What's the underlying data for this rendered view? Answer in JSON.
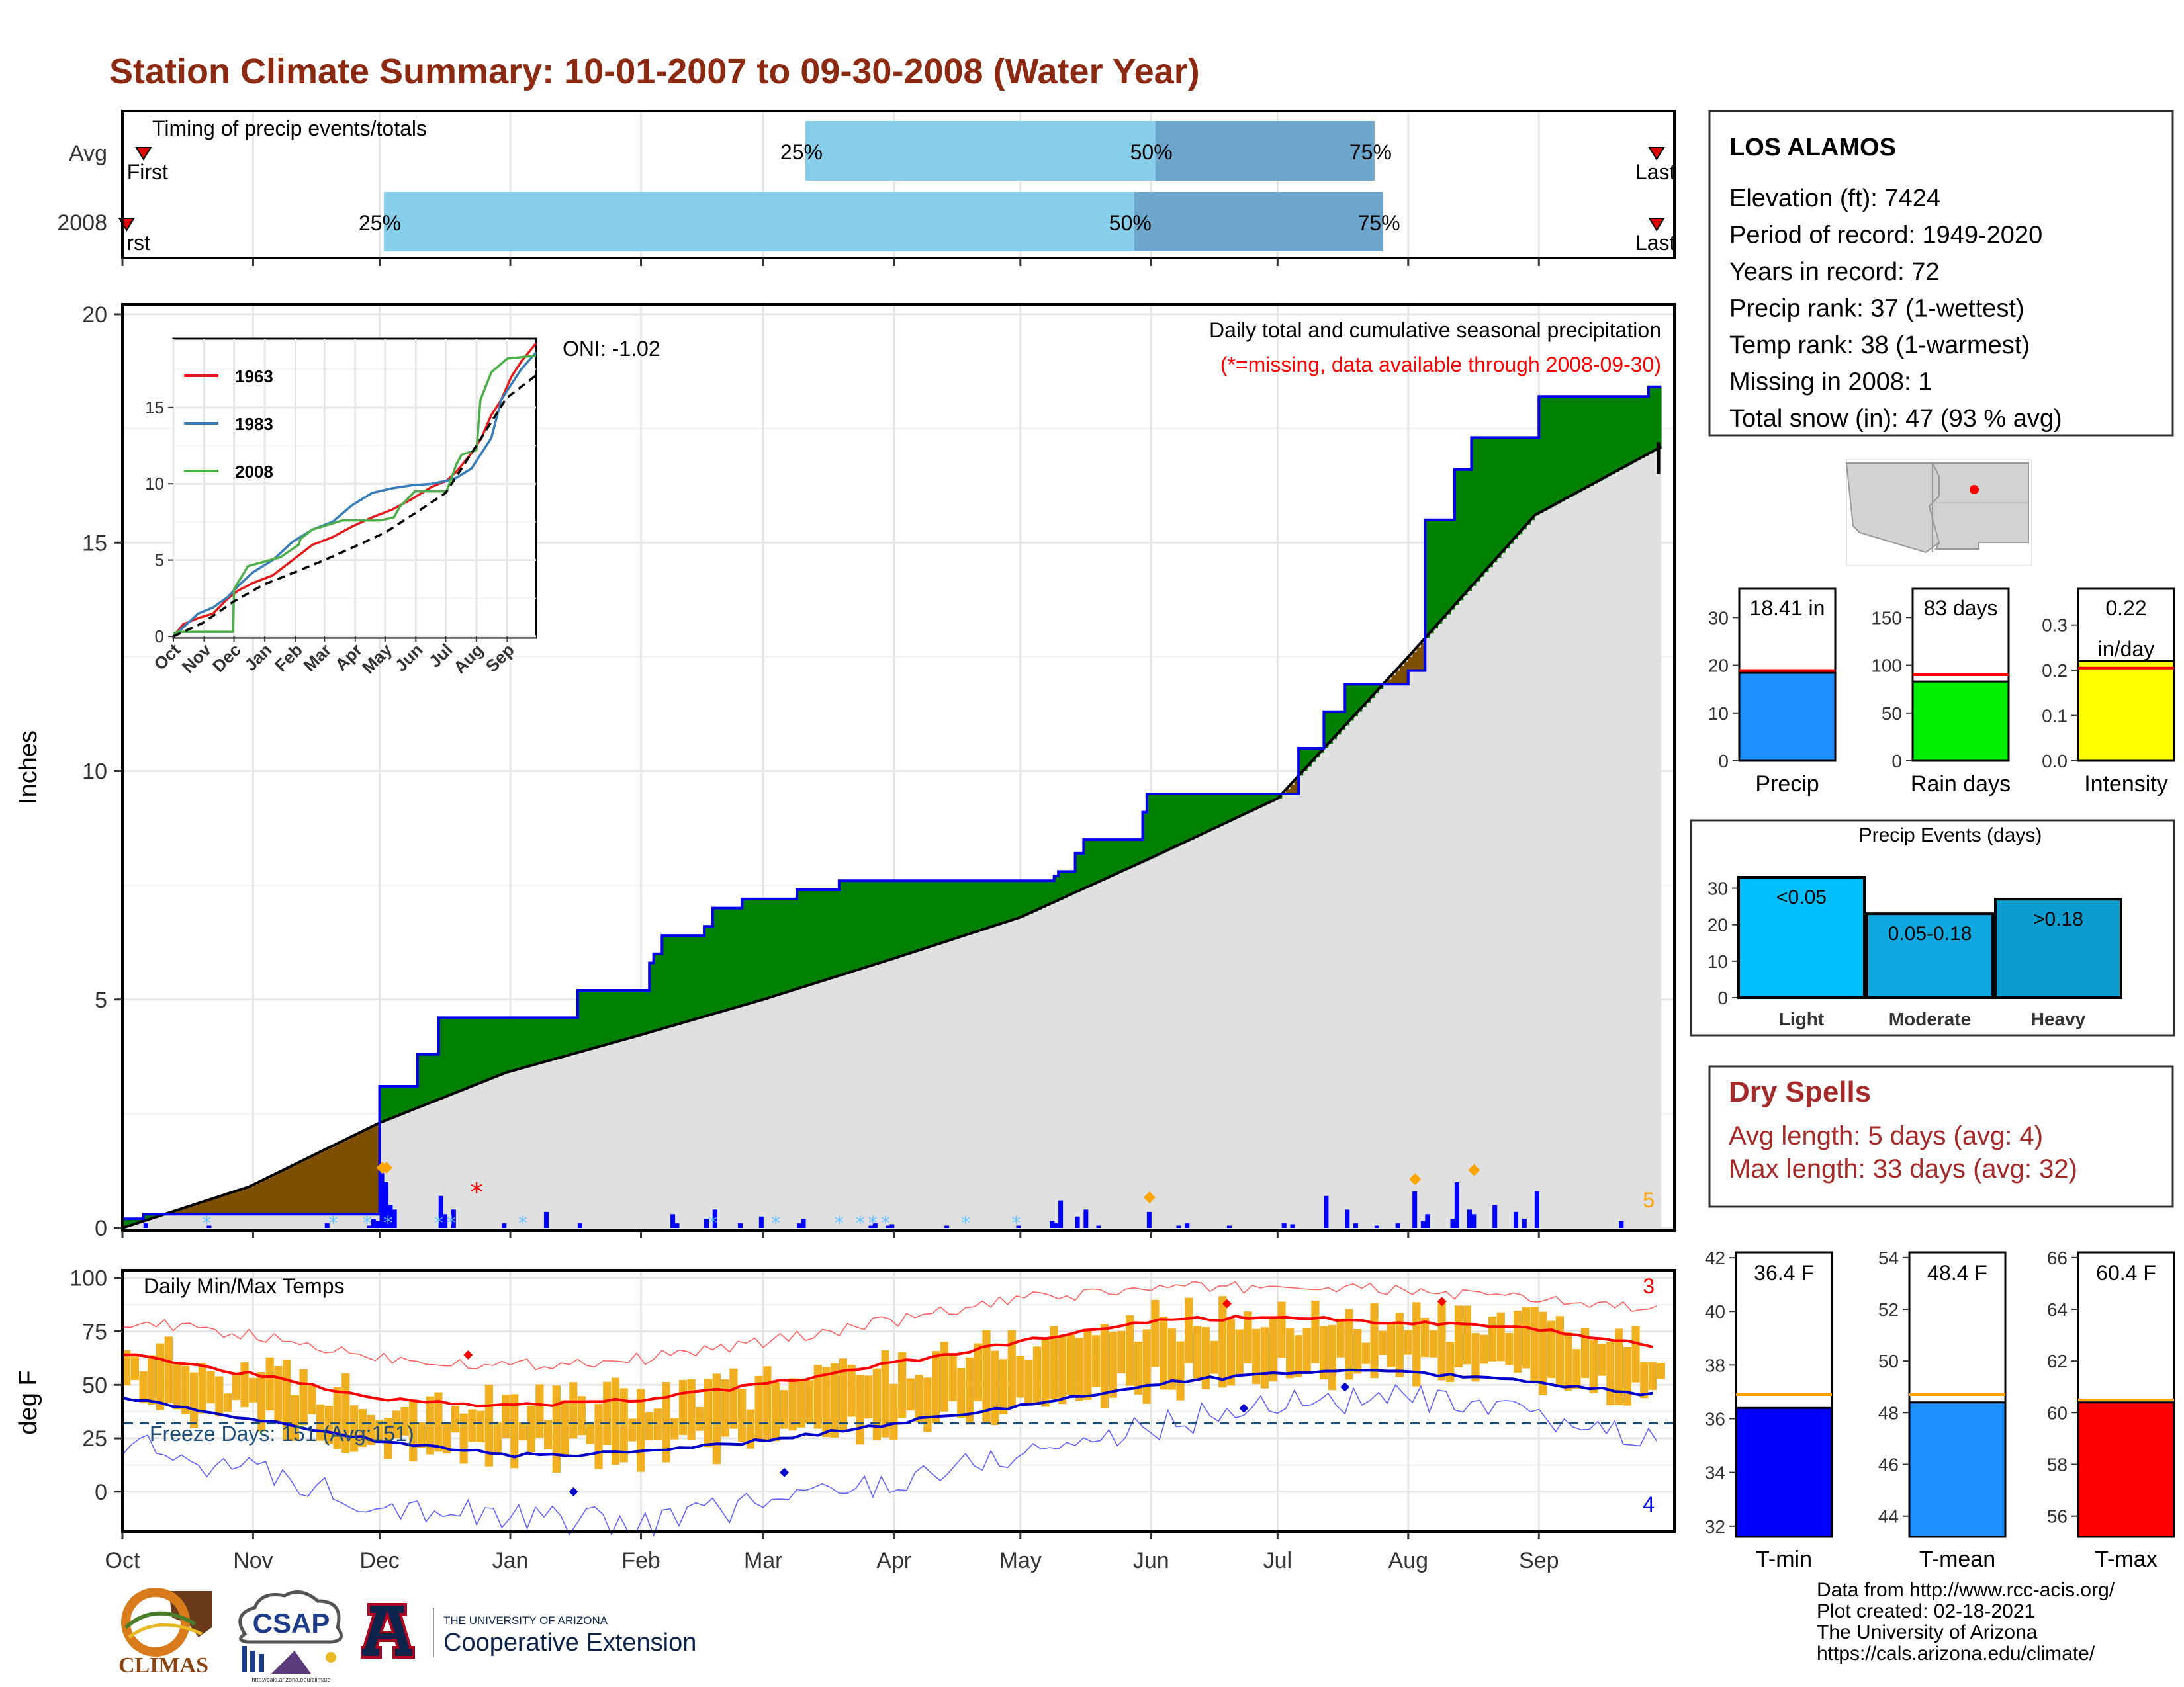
{
  "title": "Station Climate Summary: 10-01-2007 to 09-30-2008 (Water Year)",
  "timing": {
    "label": "Timing of precip events/totals",
    "rows": [
      {
        "name": "Avg",
        "first_label": "First",
        "last_label": "Last",
        "p25": "25%",
        "p50": "50%",
        "p75": "75%",
        "first_day": 5,
        "p25_day": 162,
        "p50_day": 245,
        "p75_day": 297,
        "last_day": 360
      },
      {
        "name": "2008",
        "first_label": "rst",
        "last_label": "Last",
        "p25": "25%",
        "p50": "50%",
        "p75": "75%",
        "first_day": 1,
        "p25_day": 62,
        "p50_day": 240,
        "p75_day": 299,
        "last_day": 360
      }
    ]
  },
  "station": {
    "name": "LOS ALAMOS",
    "lines": [
      "Elevation (ft): 7424",
      "Period of record: 1949-2020",
      "Years in record: 72",
      "Precip rank: 37 (1-wettest)",
      "Temp rank: 38 (1-warmest)",
      "Missing in 2008: 1",
      "Total snow (in): 47 (93 % avg)"
    ]
  },
  "precip_panel": {
    "ylabel": "Inches",
    "title_line1": "Daily total and cumulative seasonal precipitation",
    "title_line2": "(*=missing, data available through 2008-09-30)",
    "oni": "ONI: -1.02",
    "corner_count": "5",
    "yticks": [
      "0",
      "5",
      "10",
      "15",
      "20"
    ]
  },
  "inset": {
    "legend": [
      "1963",
      "1983",
      "2008"
    ],
    "legend_colors": [
      "#e41a1c",
      "#377eb8",
      "#4daf4a"
    ],
    "yticks": [
      "0",
      "5",
      "10",
      "15"
    ],
    "xticks": [
      "Oct",
      "Nov",
      "Dec",
      "Jan",
      "Feb",
      "Mar",
      "Apr",
      "May",
      "Jun",
      "Jul",
      "Aug",
      "Sep"
    ]
  },
  "temp_panel": {
    "ylabel": "deg F",
    "title": "Daily Min/Max Temps",
    "freeze": "Freeze Days: 151 (Avg:151)",
    "count_hi": "3",
    "count_lo": "4",
    "yticks": [
      "0",
      "25",
      "50",
      "75",
      "100"
    ]
  },
  "months": [
    "Oct",
    "Nov",
    "Dec",
    "Jan",
    "Feb",
    "Mar",
    "Apr",
    "May",
    "Jun",
    "Jul",
    "Aug",
    "Sep"
  ],
  "summary_bars": [
    {
      "label": "Precip",
      "value": 18.41,
      "avg": 18.9,
      "ymax": 36,
      "ticks": [
        "0",
        "10",
        "20",
        "30"
      ],
      "tickvals": [
        0,
        10,
        20,
        30
      ],
      "text": "18.41 in",
      "color": "#1e90ff"
    },
    {
      "label": "Rain days",
      "value": 83,
      "avg": 90,
      "ymax": 180,
      "ticks": [
        "0",
        "50",
        "100",
        "150"
      ],
      "tickvals": [
        0,
        50,
        100,
        150
      ],
      "text": "83 days",
      "color": "#00ee00"
    },
    {
      "label": "Intensity",
      "value": 0.22,
      "avg": 0.205,
      "ymax": 0.38,
      "ticks": [
        "0.0",
        "0.1",
        "0.2",
        "0.3"
      ],
      "tickvals": [
        0,
        0.1,
        0.2,
        0.3
      ],
      "text": "0.22",
      "text2": "in/day",
      "color": "#ffff00"
    }
  ],
  "events": {
    "title": "Precip Events (days)",
    "ticks": [
      "0",
      "10",
      "20",
      "30"
    ],
    "bars": [
      {
        "label": "Light",
        "text": "<0.05",
        "value": 33,
        "color": "#00bfff"
      },
      {
        "label": "Moderate",
        "text": "0.05-0.18",
        "value": 23,
        "color": "#0fa8e0"
      },
      {
        "label": "Heavy",
        "text": ">0.18",
        "value": 27,
        "color": "#0b9cd0"
      }
    ]
  },
  "dry_spells": {
    "title": "Dry Spells",
    "avg_length": "Avg length: 5 days (avg: 4)",
    "max_length": "Max length: 33 days (avg: 32)"
  },
  "temp_bars": [
    {
      "label": "T-min",
      "value": 36.4,
      "avg": 36.9,
      "ymin": 31.6,
      "ymax": 42.2,
      "ticks": [
        "32",
        "34",
        "36",
        "38",
        "40",
        "42"
      ],
      "tickvals": [
        32,
        34,
        36,
        38,
        40,
        42
      ],
      "text": "36.4 F",
      "color": "#0000ff"
    },
    {
      "label": "T-mean",
      "value": 48.4,
      "avg": 48.7,
      "ymin": 43.2,
      "ymax": 54.2,
      "ticks": [
        "44",
        "46",
        "48",
        "50",
        "52",
        "54"
      ],
      "tickvals": [
        44,
        46,
        48,
        50,
        52,
        54
      ],
      "text": "48.4 F",
      "color": "#1e90ff"
    },
    {
      "label": "T-max",
      "value": 60.4,
      "avg": 60.5,
      "ymin": 55.2,
      "ymax": 66.2,
      "ticks": [
        "56",
        "58",
        "60",
        "62",
        "64",
        "66"
      ],
      "tickvals": [
        56,
        58,
        60,
        62,
        64,
        66
      ],
      "text": "60.4 F",
      "color": "#ff0000"
    }
  ],
  "footer": [
    "Data from http://www.rcc-acis.org/",
    "Plot created: 02-18-2021",
    "The University of Arizona",
    "https://cals.arizona.edu/climate/"
  ],
  "logos": {
    "climas": "CLIMAS",
    "csap": "CSAP",
    "csap_url": "http://cals.arizona.edu/climate",
    "ua_top": "THE UNIVERSITY OF ARIZONA",
    "ua_bottom": "Cooperative Extension"
  },
  "colors": {
    "above_avg": "#008000",
    "below_avg": "#7f4f00",
    "climatology": "#e0e0e0",
    "precip_line": "#0000ee",
    "temp_bars": "#f0b020",
    "tmax_line": "#ff0000",
    "tmin_line": "#0000cc"
  },
  "chart_data": [
    {
      "type": "area",
      "name": "cumulative_precip",
      "x_unit": "day of water year",
      "ylim": [
        0,
        20
      ],
      "avg_cumulative": {
        "x": [
          0,
          30,
          61,
          91,
          122,
          152,
          183,
          213,
          244,
          274,
          305,
          335,
          365
        ],
        "y": [
          0,
          0.9,
          2.3,
          3.4,
          4.2,
          5.0,
          5.9,
          6.8,
          8.1,
          9.4,
          12.5,
          15.6,
          17.1
        ]
      },
      "obs_cumulative": {
        "x": [
          0,
          5,
          60,
          61,
          70,
          75,
          100,
          108,
          125,
          126,
          128,
          138,
          140,
          147,
          160,
          170,
          185,
          208,
          221,
          222,
          226,
          228,
          242,
          243,
          258,
          262,
          275,
          279,
          285,
          290,
          305,
          309,
          316,
          320,
          332,
          336,
          362,
          365
        ],
        "y": [
          0.2,
          0.3,
          0.3,
          3.1,
          3.8,
          4.6,
          4.6,
          5.2,
          5.8,
          6.0,
          6.4,
          6.6,
          7.0,
          7.2,
          7.4,
          7.6,
          7.6,
          7.6,
          7.7,
          7.8,
          8.2,
          8.5,
          9.1,
          9.5,
          9.5,
          9.5,
          9.5,
          10.5,
          11.3,
          11.9,
          12.2,
          15.5,
          16.6,
          17.3,
          17.3,
          18.2,
          18.41,
          18.41
        ]
      },
      "daily_precip": {
        "x": [
          5,
          20,
          48,
          58,
          59,
          60,
          61,
          62,
          63,
          64,
          75,
          76,
          78,
          90,
          100,
          108,
          130,
          131,
          138,
          140,
          146,
          151,
          160,
          161,
          177,
          178,
          181,
          182,
          195,
          212,
          220,
          221,
          222,
          226,
          228,
          231,
          243,
          250,
          252,
          262,
          275,
          277,
          285,
          290,
          292,
          297,
          302,
          306,
          308,
          309,
          315,
          316,
          319,
          320,
          325,
          330,
          332,
          335,
          355
        ],
        "y": [
          0.1,
          0.05,
          0.1,
          0.05,
          0.2,
          0.15,
          1.2,
          1.0,
          0.5,
          0.4,
          0.7,
          0.3,
          0.4,
          0.1,
          0.35,
          0.1,
          0.3,
          0.1,
          0.2,
          0.4,
          0.1,
          0.25,
          0.1,
          0.2,
          0.05,
          0.1,
          0.05,
          0.08,
          0.05,
          0.05,
          0.15,
          0.1,
          0.6,
          0.25,
          0.4,
          0.05,
          0.35,
          0.05,
          0.1,
          0.05,
          0.1,
          0.08,
          0.7,
          0.4,
          0.1,
          0.05,
          0.1,
          0.8,
          0.15,
          0.3,
          0.2,
          1.0,
          0.4,
          0.3,
          0.5,
          0.35,
          0.2,
          0.8,
          0.15
        ]
      }
    },
    {
      "type": "bar",
      "name": "summary_stats",
      "categories": [
        "Precip",
        "Rain days",
        "Intensity"
      ],
      "values": [
        18.41,
        83,
        0.22
      ]
    },
    {
      "type": "bar",
      "name": "precip_events",
      "categories": [
        "Light",
        "Moderate",
        "Heavy"
      ],
      "values": [
        33,
        23,
        27
      ],
      "ylim": [
        0,
        35
      ]
    },
    {
      "type": "bar",
      "name": "annual_temps",
      "categories": [
        "T-min",
        "T-mean",
        "T-max"
      ],
      "values": [
        36.4,
        48.4,
        60.4
      ]
    },
    {
      "type": "line",
      "name": "inset_cumulative",
      "ylim": [
        0,
        19.5
      ],
      "series": [
        {
          "name": "1963",
          "x": [
            0,
            10,
            25,
            40,
            55,
            65,
            80,
            100,
            120,
            140,
            160,
            180,
            200,
            220,
            240,
            260,
            275,
            285,
            300,
            310,
            320,
            330,
            340,
            350,
            365
          ],
          "y": [
            0,
            0.8,
            1.2,
            1.5,
            2.5,
            3.0,
            3.5,
            4.0,
            5.0,
            6.0,
            6.5,
            7.2,
            7.8,
            8.3,
            9.0,
            9.8,
            10.2,
            10.8,
            12.0,
            13.0,
            14.5,
            15.5,
            17.0,
            18.0,
            19.2
          ]
        },
        {
          "name": "1983",
          "x": [
            0,
            10,
            25,
            40,
            55,
            65,
            80,
            100,
            120,
            140,
            160,
            180,
            200,
            220,
            240,
            260,
            275,
            285,
            300,
            310,
            320,
            330,
            340,
            350,
            365
          ],
          "y": [
            0,
            0.6,
            1.5,
            1.9,
            2.6,
            3.3,
            4.2,
            5.0,
            6.2,
            7.0,
            7.5,
            8.6,
            9.4,
            9.7,
            9.9,
            10.0,
            10.2,
            10.4,
            11.0,
            12.0,
            13.0,
            15.5,
            16.5,
            17.5,
            18.6
          ]
        },
        {
          "name": "2008",
          "x": [
            0,
            5,
            60,
            61,
            75,
            108,
            126,
            128,
            140,
            170,
            208,
            222,
            228,
            243,
            275,
            285,
            290,
            305,
            309,
            320,
            336,
            365
          ],
          "y": [
            0.2,
            0.3,
            0.3,
            3.1,
            4.6,
            5.2,
            6.0,
            6.4,
            7.0,
            7.6,
            7.6,
            7.8,
            8.5,
            9.5,
            9.5,
            11.3,
            11.9,
            12.2,
            15.5,
            17.3,
            18.2,
            18.4
          ]
        },
        {
          "name": "avg",
          "x": [
            0,
            30,
            61,
            91,
            122,
            152,
            183,
            213,
            244,
            274,
            305,
            335,
            365
          ],
          "y": [
            0,
            0.9,
            2.3,
            3.4,
            4.2,
            5.0,
            5.9,
            6.8,
            8.1,
            9.4,
            12.5,
            15.6,
            17.1
          ]
        }
      ]
    },
    {
      "type": "line",
      "name": "daily_temps",
      "ylim": [
        -18,
        103
      ],
      "tmax_avg": {
        "x": [
          0,
          30,
          61,
          91,
          122,
          152,
          183,
          213,
          244,
          274,
          305,
          335,
          365
        ],
        "y": [
          65,
          55,
          44,
          40,
          43,
          50,
          60,
          70,
          80,
          82,
          79,
          76,
          68
        ]
      },
      "tmin_avg": {
        "x": [
          0,
          30,
          61,
          91,
          122,
          152,
          183,
          213,
          244,
          274,
          305,
          335,
          365
        ],
        "y": [
          44,
          34,
          24,
          17,
          18,
          24,
          32,
          40,
          50,
          56,
          56,
          51,
          45
        ]
      },
      "record_max": {
        "x": [
          0,
          30,
          61,
          91,
          122,
          152,
          183,
          213,
          244,
          274,
          305,
          335,
          365
        ],
        "y": [
          80,
          73,
          63,
          59,
          62,
          70,
          80,
          90,
          95,
          96,
          94,
          90,
          85
        ]
      },
      "record_min": {
        "x": [
          0,
          30,
          61,
          91,
          122,
          152,
          183,
          213,
          244,
          274,
          305,
          335,
          365
        ],
        "y": [
          22,
          10,
          -5,
          -12,
          -15,
          -5,
          5,
          18,
          30,
          42,
          44,
          34,
          25
        ]
      },
      "freeze_line": 32
    }
  ]
}
